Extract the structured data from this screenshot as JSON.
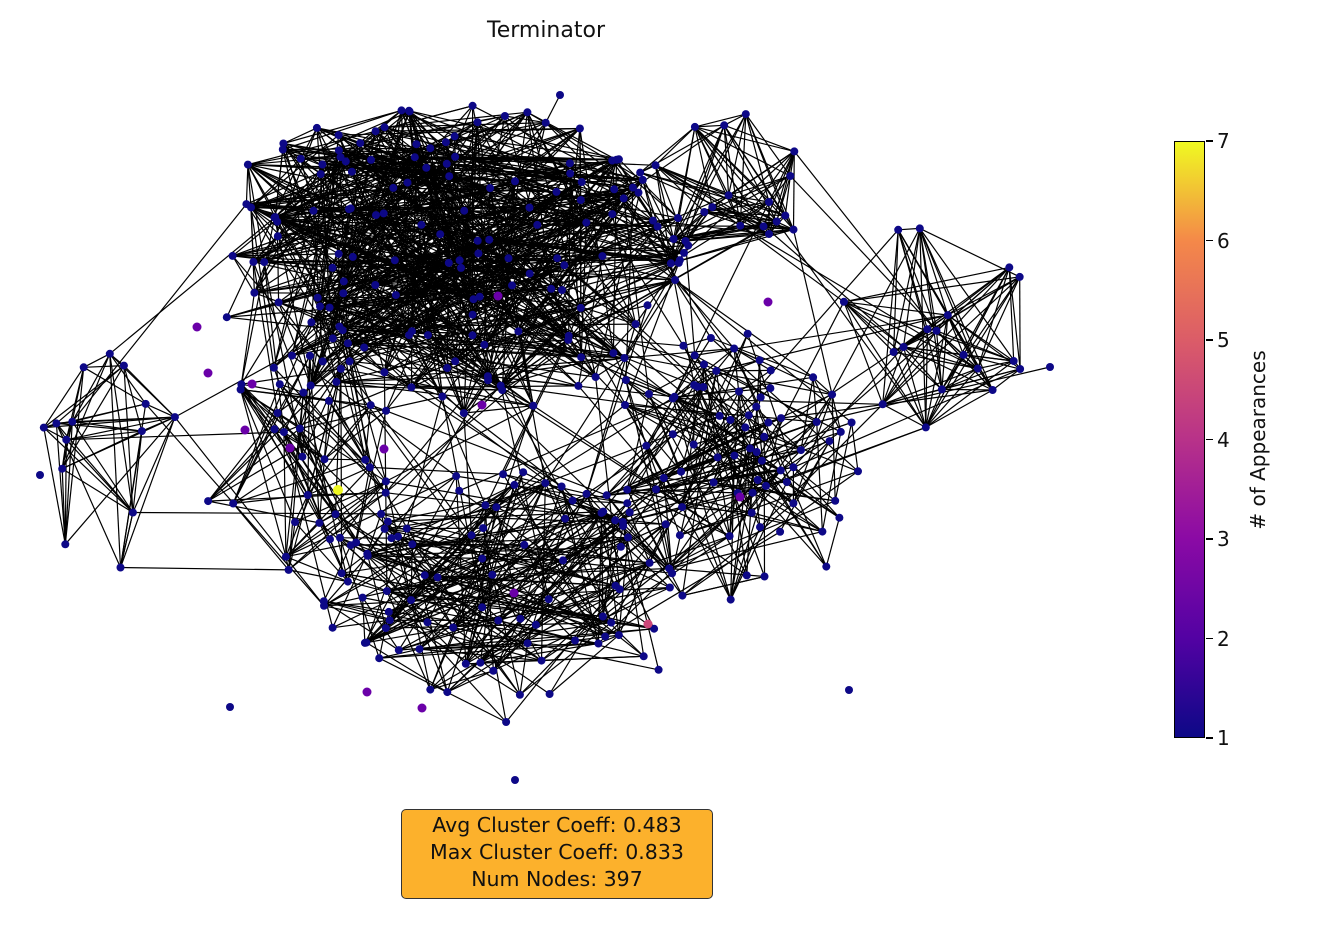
{
  "title": "Terminator",
  "stats": {
    "avg_cluster": "Avg Cluster Coeff: 0.483",
    "max_cluster": "Max Cluster Coeff: 0.833",
    "num_nodes": "Num Nodes: 397"
  },
  "colorbar": {
    "label": "# of Appearances",
    "ticks": [
      "1",
      "2",
      "3",
      "4",
      "5",
      "6",
      "7"
    ],
    "min": 1,
    "max": 7,
    "colormap": "plasma"
  },
  "colors": {
    "background": "#ffffff",
    "edge": "#000000",
    "node_low": "#0d0887",
    "node_2": "#6a00a8",
    "node_4": "#cc4778",
    "node_high": "#f0f921",
    "stats_box": "#fcb12c"
  }
}
